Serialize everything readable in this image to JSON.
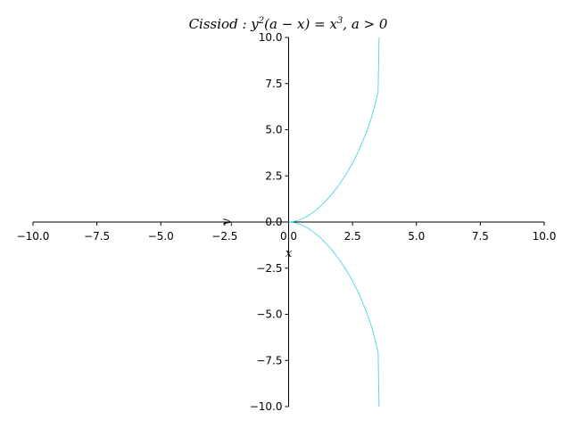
{
  "chart_data": {
    "type": "line",
    "title": {
      "prefix": "Cissiod : y",
      "sup1": "2",
      "middle": "(a − x) = x",
      "sup2": "3",
      "suffix": ", a > 0"
    },
    "xlabel": "x",
    "ylabel": "y",
    "xlim": [
      -10,
      10
    ],
    "ylim": [
      -10,
      10
    ],
    "xticks": [
      -10,
      -7.5,
      -5,
      -2.5,
      0,
      2.5,
      5,
      7.5,
      10
    ],
    "xtick_labels": [
      "−10.0",
      "−7.5",
      "−5.0",
      "−2.5",
      "0.0",
      "2.5",
      "5.0",
      "7.5",
      "10.0"
    ],
    "yticks": [
      10,
      7.5,
      5,
      2.5,
      0,
      -2.5,
      -5,
      -7.5,
      -10
    ],
    "ytick_labels": [
      "10.0",
      "7.5",
      "5.0",
      "2.5",
      "0.0",
      "−2.5",
      "−5.0",
      "−7.5",
      "−10.0"
    ],
    "grid": false,
    "series_color": "#4dd4e0",
    "series": [
      {
        "x": [
          0,
          0.25,
          0.5,
          0.75,
          1.0,
          1.25,
          1.5,
          1.75,
          2.0,
          2.25,
          2.5,
          2.75,
          3.0,
          3.1,
          3.2,
          3.3,
          3.4,
          3.5,
          3.54
        ],
        "y": [
          0,
          0.04,
          0.15,
          0.33,
          0.57,
          0.86,
          1.21,
          1.61,
          2.07,
          2.59,
          3.18,
          3.88,
          4.71,
          5.08,
          5.48,
          5.95,
          6.46,
          7.05,
          10.0
        ]
      },
      {
        "x": [
          0,
          0.25,
          0.5,
          0.75,
          1.0,
          1.25,
          1.5,
          1.75,
          2.0,
          2.25,
          2.5,
          2.75,
          3.0,
          3.1,
          3.2,
          3.3,
          3.4,
          3.5,
          3.54
        ],
        "y": [
          0,
          -0.04,
          -0.15,
          -0.33,
          -0.57,
          -0.86,
          -1.21,
          -1.61,
          -2.07,
          -2.59,
          -3.18,
          -3.88,
          -4.71,
          -5.08,
          -5.48,
          -5.95,
          -6.46,
          -7.05,
          -10.0
        ]
      }
    ]
  }
}
